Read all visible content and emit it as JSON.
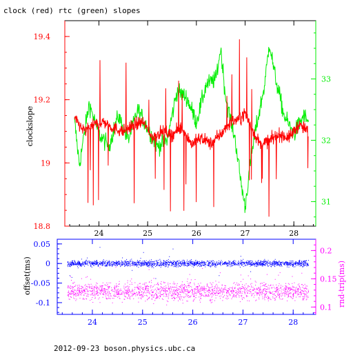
{
  "title": "clock (red) rtc (green) slopes",
  "footer": "2012-09-23  boson.physics.ubc.ca",
  "colors": {
    "clock": "#ff0000",
    "rtc": "#00ee00",
    "offset": "#0000ff",
    "rndtrip": "#ff00ff",
    "axis_top": "#000000",
    "axis_bottom": "#0000ff"
  },
  "chart_data": [
    {
      "type": "line",
      "title": "clock (red) rtc (green) slopes",
      "xlabel": "",
      "ylabel": "clockslope",
      "xlim": [
        23.3,
        28.45
      ],
      "ylim": [
        18.8,
        19.45
      ],
      "xticks": [
        24,
        25,
        26,
        27,
        28
      ],
      "yticks": [
        18.8,
        19,
        19.2,
        19.4
      ],
      "ytick_labels": [
        "18.8",
        "19",
        "19.2",
        "19.4"
      ],
      "y2lim": [
        30.6,
        33.95
      ],
      "y2ticks": [
        31,
        32,
        33
      ],
      "y2tick_labels": [
        "31",
        "32",
        "33"
      ],
      "series": [
        {
          "name": "clock (red)",
          "axis": "left",
          "x": [
            23.5,
            23.7,
            23.9,
            24.1,
            24.3,
            24.5,
            24.7,
            24.9,
            25.1,
            25.3,
            25.5,
            25.7,
            25.9,
            26.1,
            26.3,
            26.5,
            26.7,
            26.9,
            27.0,
            27.1,
            27.3,
            27.5,
            27.7,
            27.9,
            28.1,
            28.3
          ],
          "y": [
            19.14,
            19.1,
            19.12,
            19.13,
            19.11,
            19.1,
            19.12,
            19.13,
            19.08,
            19.1,
            19.09,
            19.11,
            19.06,
            19.08,
            19.06,
            19.09,
            19.13,
            19.14,
            19.16,
            19.12,
            19.06,
            19.07,
            19.09,
            19.08,
            19.12,
            19.1
          ]
        },
        {
          "name": "rtc (green)",
          "axis": "right",
          "x": [
            23.5,
            23.6,
            23.8,
            24.0,
            24.2,
            24.4,
            24.6,
            24.8,
            25.0,
            25.2,
            25.4,
            25.6,
            25.8,
            26.0,
            26.2,
            26.4,
            26.5,
            26.6,
            26.8,
            26.9,
            27.0,
            27.1,
            27.2,
            27.4,
            27.5,
            27.6,
            27.8,
            28.0,
            28.2,
            28.3
          ],
          "y": [
            32.3,
            31.6,
            32.6,
            32.1,
            31.9,
            32.4,
            32.0,
            32.5,
            32.2,
            31.9,
            32.0,
            32.8,
            32.7,
            32.3,
            32.9,
            33.0,
            33.5,
            32.7,
            32.0,
            31.4,
            30.9,
            31.6,
            32.1,
            32.9,
            33.6,
            33.1,
            32.4,
            32.1,
            32.4,
            32.3
          ]
        }
      ]
    },
    {
      "type": "scatter",
      "xlabel": "",
      "ylabel": "offset(ms)",
      "y2label": "rnd-trip(ms)",
      "xlim": [
        23.3,
        28.45
      ],
      "ylim": [
        -0.13,
        0.062
      ],
      "xticks": [
        24,
        25,
        26,
        27,
        28
      ],
      "yticks": [
        0.05,
        0,
        -0.05,
        -0.1
      ],
      "ytick_labels": [
        "0.05",
        "0",
        "-0.05",
        "-0.1"
      ],
      "y2lim": [
        0.087,
        0.22
      ],
      "y2ticks": [
        0.1,
        0.15,
        0.2
      ],
      "y2tick_labels": [
        "0.1",
        "0.15",
        "0.2"
      ],
      "series": [
        {
          "name": "offset(ms)",
          "axis": "left",
          "x_range": [
            23.5,
            28.3
          ],
          "center": 0.0,
          "spread": 0.006
        },
        {
          "name": "rnd-trip(ms)",
          "axis": "right",
          "x_range": [
            23.5,
            28.3
          ],
          "center": 0.128,
          "spread": 0.012
        }
      ]
    }
  ]
}
